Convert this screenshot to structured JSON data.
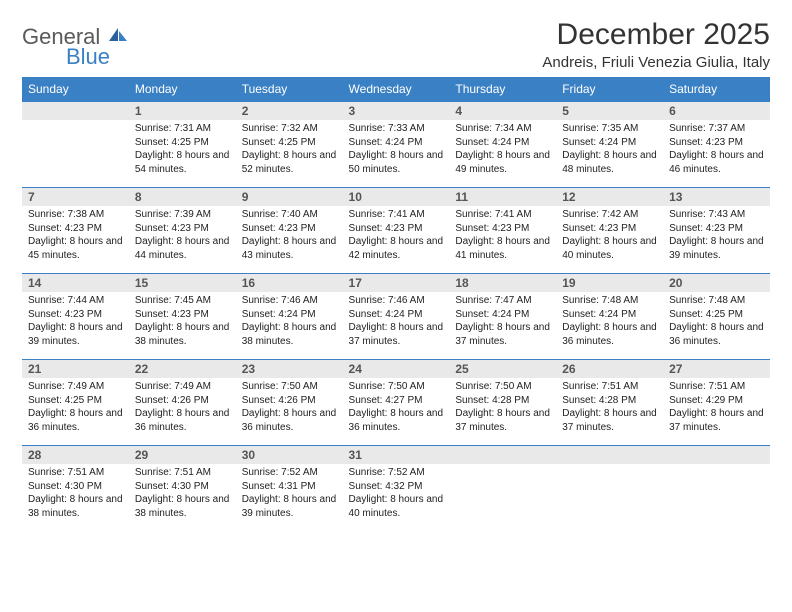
{
  "logo": {
    "general": "General",
    "blue": "Blue"
  },
  "title": "December 2025",
  "location": "Andreis, Friuli Venezia Giulia, Italy",
  "header_days": [
    "Sunday",
    "Monday",
    "Tuesday",
    "Wednesday",
    "Thursday",
    "Friday",
    "Saturday"
  ],
  "colors": {
    "header_bg": "#3a80c4",
    "header_fg": "#ffffff",
    "daynum_bg": "#e9e9e9",
    "rule": "#3a80c4",
    "logo_blue": "#3a80c4",
    "logo_gray": "#5a5a5a"
  },
  "weeks": [
    [
      {
        "n": "",
        "sr": "",
        "ss": "",
        "dl": ""
      },
      {
        "n": "1",
        "sr": "Sunrise: 7:31 AM",
        "ss": "Sunset: 4:25 PM",
        "dl": "Daylight: 8 hours and 54 minutes."
      },
      {
        "n": "2",
        "sr": "Sunrise: 7:32 AM",
        "ss": "Sunset: 4:25 PM",
        "dl": "Daylight: 8 hours and 52 minutes."
      },
      {
        "n": "3",
        "sr": "Sunrise: 7:33 AM",
        "ss": "Sunset: 4:24 PM",
        "dl": "Daylight: 8 hours and 50 minutes."
      },
      {
        "n": "4",
        "sr": "Sunrise: 7:34 AM",
        "ss": "Sunset: 4:24 PM",
        "dl": "Daylight: 8 hours and 49 minutes."
      },
      {
        "n": "5",
        "sr": "Sunrise: 7:35 AM",
        "ss": "Sunset: 4:24 PM",
        "dl": "Daylight: 8 hours and 48 minutes."
      },
      {
        "n": "6",
        "sr": "Sunrise: 7:37 AM",
        "ss": "Sunset: 4:23 PM",
        "dl": "Daylight: 8 hours and 46 minutes."
      }
    ],
    [
      {
        "n": "7",
        "sr": "Sunrise: 7:38 AM",
        "ss": "Sunset: 4:23 PM",
        "dl": "Daylight: 8 hours and 45 minutes."
      },
      {
        "n": "8",
        "sr": "Sunrise: 7:39 AM",
        "ss": "Sunset: 4:23 PM",
        "dl": "Daylight: 8 hours and 44 minutes."
      },
      {
        "n": "9",
        "sr": "Sunrise: 7:40 AM",
        "ss": "Sunset: 4:23 PM",
        "dl": "Daylight: 8 hours and 43 minutes."
      },
      {
        "n": "10",
        "sr": "Sunrise: 7:41 AM",
        "ss": "Sunset: 4:23 PM",
        "dl": "Daylight: 8 hours and 42 minutes."
      },
      {
        "n": "11",
        "sr": "Sunrise: 7:41 AM",
        "ss": "Sunset: 4:23 PM",
        "dl": "Daylight: 8 hours and 41 minutes."
      },
      {
        "n": "12",
        "sr": "Sunrise: 7:42 AM",
        "ss": "Sunset: 4:23 PM",
        "dl": "Daylight: 8 hours and 40 minutes."
      },
      {
        "n": "13",
        "sr": "Sunrise: 7:43 AM",
        "ss": "Sunset: 4:23 PM",
        "dl": "Daylight: 8 hours and 39 minutes."
      }
    ],
    [
      {
        "n": "14",
        "sr": "Sunrise: 7:44 AM",
        "ss": "Sunset: 4:23 PM",
        "dl": "Daylight: 8 hours and 39 minutes."
      },
      {
        "n": "15",
        "sr": "Sunrise: 7:45 AM",
        "ss": "Sunset: 4:23 PM",
        "dl": "Daylight: 8 hours and 38 minutes."
      },
      {
        "n": "16",
        "sr": "Sunrise: 7:46 AM",
        "ss": "Sunset: 4:24 PM",
        "dl": "Daylight: 8 hours and 38 minutes."
      },
      {
        "n": "17",
        "sr": "Sunrise: 7:46 AM",
        "ss": "Sunset: 4:24 PM",
        "dl": "Daylight: 8 hours and 37 minutes."
      },
      {
        "n": "18",
        "sr": "Sunrise: 7:47 AM",
        "ss": "Sunset: 4:24 PM",
        "dl": "Daylight: 8 hours and 37 minutes."
      },
      {
        "n": "19",
        "sr": "Sunrise: 7:48 AM",
        "ss": "Sunset: 4:24 PM",
        "dl": "Daylight: 8 hours and 36 minutes."
      },
      {
        "n": "20",
        "sr": "Sunrise: 7:48 AM",
        "ss": "Sunset: 4:25 PM",
        "dl": "Daylight: 8 hours and 36 minutes."
      }
    ],
    [
      {
        "n": "21",
        "sr": "Sunrise: 7:49 AM",
        "ss": "Sunset: 4:25 PM",
        "dl": "Daylight: 8 hours and 36 minutes."
      },
      {
        "n": "22",
        "sr": "Sunrise: 7:49 AM",
        "ss": "Sunset: 4:26 PM",
        "dl": "Daylight: 8 hours and 36 minutes."
      },
      {
        "n": "23",
        "sr": "Sunrise: 7:50 AM",
        "ss": "Sunset: 4:26 PM",
        "dl": "Daylight: 8 hours and 36 minutes."
      },
      {
        "n": "24",
        "sr": "Sunrise: 7:50 AM",
        "ss": "Sunset: 4:27 PM",
        "dl": "Daylight: 8 hours and 36 minutes."
      },
      {
        "n": "25",
        "sr": "Sunrise: 7:50 AM",
        "ss": "Sunset: 4:28 PM",
        "dl": "Daylight: 8 hours and 37 minutes."
      },
      {
        "n": "26",
        "sr": "Sunrise: 7:51 AM",
        "ss": "Sunset: 4:28 PM",
        "dl": "Daylight: 8 hours and 37 minutes."
      },
      {
        "n": "27",
        "sr": "Sunrise: 7:51 AM",
        "ss": "Sunset: 4:29 PM",
        "dl": "Daylight: 8 hours and 37 minutes."
      }
    ],
    [
      {
        "n": "28",
        "sr": "Sunrise: 7:51 AM",
        "ss": "Sunset: 4:30 PM",
        "dl": "Daylight: 8 hours and 38 minutes."
      },
      {
        "n": "29",
        "sr": "Sunrise: 7:51 AM",
        "ss": "Sunset: 4:30 PM",
        "dl": "Daylight: 8 hours and 38 minutes."
      },
      {
        "n": "30",
        "sr": "Sunrise: 7:52 AM",
        "ss": "Sunset: 4:31 PM",
        "dl": "Daylight: 8 hours and 39 minutes."
      },
      {
        "n": "31",
        "sr": "Sunrise: 7:52 AM",
        "ss": "Sunset: 4:32 PM",
        "dl": "Daylight: 8 hours and 40 minutes."
      },
      {
        "n": "",
        "sr": "",
        "ss": "",
        "dl": ""
      },
      {
        "n": "",
        "sr": "",
        "ss": "",
        "dl": ""
      },
      {
        "n": "",
        "sr": "",
        "ss": "",
        "dl": ""
      }
    ]
  ]
}
